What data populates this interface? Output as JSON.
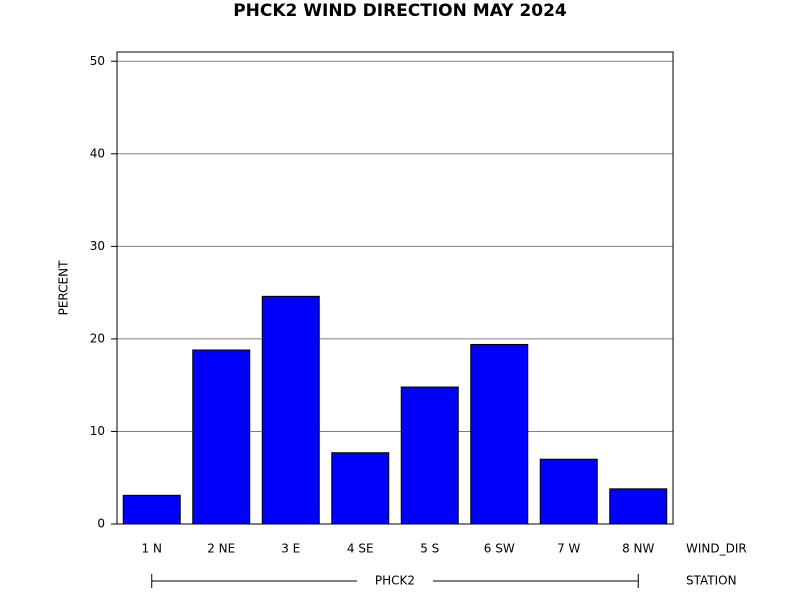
{
  "chart_data": {
    "type": "bar",
    "title": "PHCK2 WIND DIRECTION MAY 2024",
    "y_label": "PERCENT",
    "x_label": "WIND_DIR",
    "group_label": "STATION",
    "group": "PHCK2",
    "categories": [
      "1 N",
      "2 NE",
      "3 E",
      "4 SE",
      "5 S",
      "6 SW",
      "7 W",
      "8 NW"
    ],
    "values": [
      3.1,
      18.8,
      24.6,
      7.7,
      14.8,
      19.4,
      7.0,
      3.8
    ],
    "color": "#0000ff",
    "ylim": [
      0,
      51
    ],
    "yticks": [
      0,
      10,
      20,
      30,
      40,
      50
    ],
    "grid": true
  }
}
